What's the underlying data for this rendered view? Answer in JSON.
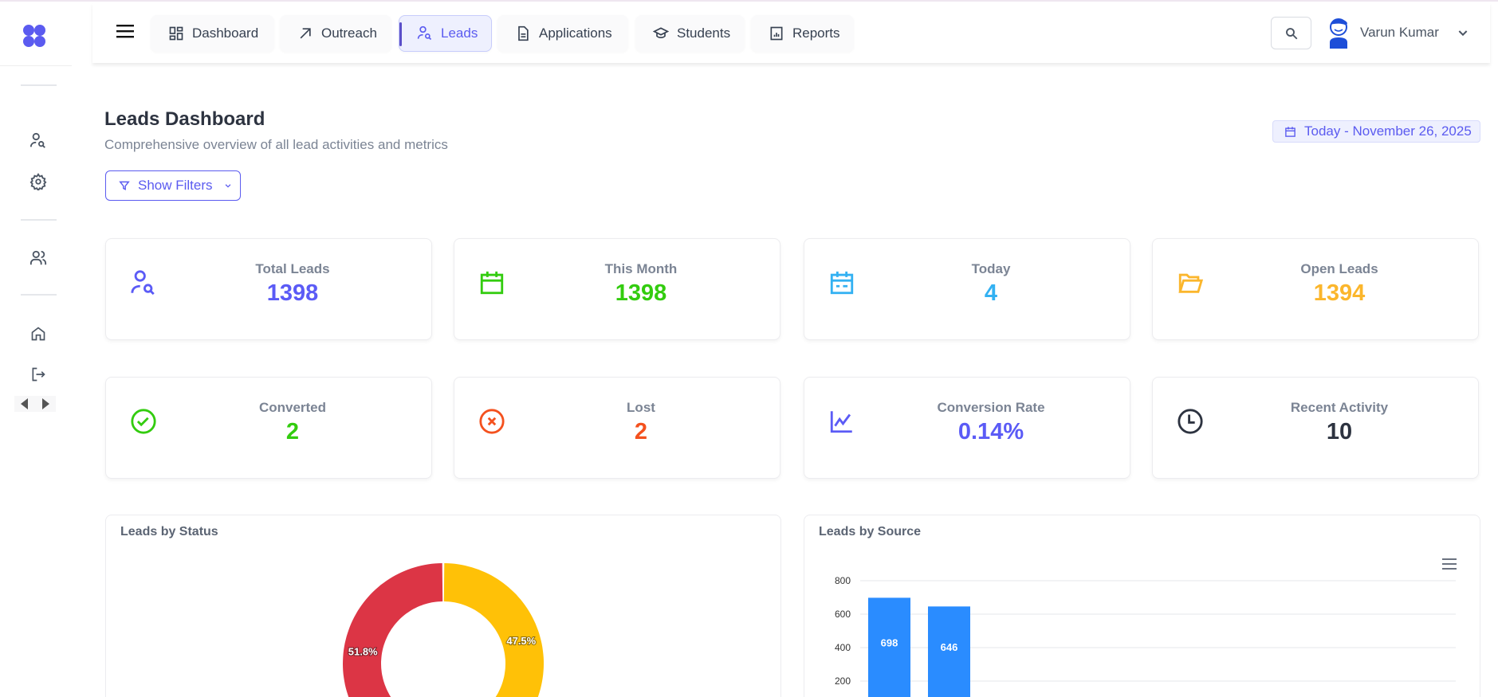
{
  "sidebar": {
    "icons": [
      "logo-icon",
      "lead-search-icon",
      "gear-icon",
      "users-icon",
      "home-icon",
      "logout-icon",
      "arrow-left-icon",
      "arrow-right-icon"
    ]
  },
  "header": {
    "tabs": [
      {
        "label": "Dashboard",
        "icon": "dashboard-icon"
      },
      {
        "label": "Outreach",
        "icon": "arrow-up-right-icon"
      },
      {
        "label": "Leads",
        "icon": "lead-search-icon",
        "active": true
      },
      {
        "label": "Applications",
        "icon": "document-icon"
      },
      {
        "label": "Students",
        "icon": "graduation-cap-icon"
      },
      {
        "label": "Reports",
        "icon": "report-icon"
      }
    ],
    "user_name": "Varun Kumar"
  },
  "page": {
    "title": "Leads Dashboard",
    "subtitle": "Comprehensive overview of all lead activities and metrics",
    "filter_label": "Show Filters",
    "date_label": "Today - November 26, 2025"
  },
  "colors": {
    "accent": "#5b5bf0",
    "green": "#33cc0f",
    "blue": "#33b1f2",
    "orange": "#fbb62c",
    "red": "#f4511e",
    "dark": "#2d3340"
  },
  "stats": [
    {
      "label": "Total Leads",
      "value": "1398",
      "color": "#5b5bf6",
      "icon": "lead-search-icon"
    },
    {
      "label": "This Month",
      "value": "1398",
      "color": "#33cc0f",
      "icon": "calendar-icon"
    },
    {
      "label": "Today",
      "value": "4",
      "color": "#33b1f2",
      "icon": "calendar-today-icon"
    },
    {
      "label": "Open Leads",
      "value": "1394",
      "color": "#fbb62c",
      "icon": "folder-open-icon"
    },
    {
      "label": "Converted",
      "value": "2",
      "color": "#33cc0f",
      "icon": "check-circle-icon"
    },
    {
      "label": "Lost",
      "value": "2",
      "color": "#f4511e",
      "icon": "x-circle-icon"
    },
    {
      "label": "Conversion Rate",
      "value": "0.14%",
      "color": "#5b5bf6",
      "icon": "trend-chart-icon"
    },
    {
      "label": "Recent Activity",
      "value": "10",
      "color": "#2d3340",
      "icon": "clock-icon"
    }
  ],
  "chart_data": [
    {
      "type": "pie",
      "title": "Leads by Status",
      "donut": true,
      "slices": [
        {
          "value": 51.8,
          "label": "51.8%",
          "color": "#dc3545"
        },
        {
          "value": 47.5,
          "label": "47.5%",
          "color": "#ffc107"
        },
        {
          "value": 0.7,
          "label": "",
          "color": "#28a745"
        }
      ]
    },
    {
      "type": "bar",
      "title": "Leads by Source",
      "values": [
        698,
        646
      ],
      "data_labels": [
        "698",
        "646"
      ],
      "yticks": [
        200,
        400,
        600,
        800
      ],
      "ylim": [
        0,
        800
      ],
      "grid": true,
      "color": "#2a8cff"
    }
  ]
}
